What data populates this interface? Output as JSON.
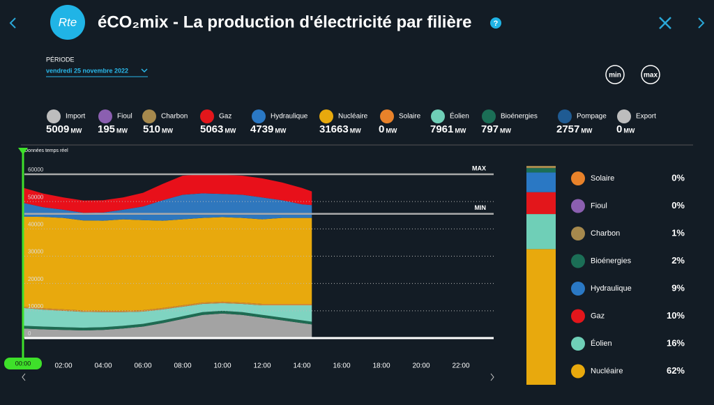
{
  "header": {
    "logo": "Rte",
    "title": "éCO₂mix - La production d'électricité par filière",
    "help": "?",
    "period_label": "PÉRIODE",
    "period": "vendredi 25 novembre 2022",
    "min_button": "min",
    "max_button": "max"
  },
  "unit": "MW",
  "sources": [
    {
      "name": "Import",
      "value": 5009,
      "color": "#bdbdbd"
    },
    {
      "name": "Fioul",
      "value": 195,
      "color": "#8b5fb0"
    },
    {
      "name": "Charbon",
      "value": 510,
      "color": "#a6894d"
    },
    {
      "name": "Gaz",
      "value": 5063,
      "color": "#e3161b"
    },
    {
      "name": "Hydraulique",
      "value": 4739,
      "color": "#2a78c4"
    },
    {
      "name": "Nucléaire",
      "value": 31663,
      "color": "#e8a90d"
    },
    {
      "name": "Solaire",
      "value": 0,
      "color": "#e8822a"
    },
    {
      "name": "Éolien",
      "value": 7961,
      "color": "#6fcfb7"
    },
    {
      "name": "Bioénergies",
      "value": 797,
      "color": "#1b6e56"
    },
    {
      "name": "Pompage",
      "value": 2757,
      "color": "#1f5b93"
    },
    {
      "name": "Export",
      "value": 0,
      "color": "#bdbdbd"
    }
  ],
  "chart_data": {
    "type": "area",
    "subtitle": "Données temps réel",
    "slider_label": "00:00",
    "x": [
      0,
      1,
      2,
      3,
      4,
      5,
      6,
      7,
      8,
      9,
      10,
      11,
      12,
      13,
      14,
      14.5
    ],
    "xlim": [
      0,
      24
    ],
    "xticks": [
      {
        "value": 2,
        "label": "02:00"
      },
      {
        "value": 4,
        "label": "04:00"
      },
      {
        "value": 6,
        "label": "06:00"
      },
      {
        "value": 8,
        "label": "08:00"
      },
      {
        "value": 10,
        "label": "10:00"
      },
      {
        "value": 12,
        "label": "12:00"
      },
      {
        "value": 14,
        "label": "14:00"
      },
      {
        "value": 16,
        "label": "16:00"
      },
      {
        "value": 18,
        "label": "18:00"
      },
      {
        "value": 20,
        "label": "20:00"
      },
      {
        "value": 22,
        "label": "22:00"
      }
    ],
    "ylim": [
      0,
      60000
    ],
    "yticks": [
      0,
      10000,
      20000,
      30000,
      40000,
      50000,
      60000
    ],
    "reference_lines": [
      {
        "label": "MAX",
        "value": 60000
      },
      {
        "label": "MIN",
        "value": 45500
      }
    ],
    "stacked": true,
    "series": [
      {
        "name": "Import",
        "color": "#a3a3a3",
        "values": [
          3500,
          3200,
          3000,
          2800,
          3000,
          3500,
          4200,
          5500,
          7000,
          8500,
          9000,
          8500,
          7500,
          6500,
          5500,
          5000
        ]
      },
      {
        "name": "Bioénergies",
        "color": "#1e6b52",
        "values": [
          1000,
          1000,
          1000,
          1000,
          1000,
          1000,
          1000,
          1000,
          1000,
          1000,
          1000,
          1000,
          1000,
          1000,
          1000,
          1000
        ]
      },
      {
        "name": "Éolien",
        "color": "#7fd4c1",
        "values": [
          6500,
          6200,
          6000,
          5800,
          5500,
          5000,
          4500,
          4000,
          3500,
          3000,
          2800,
          3000,
          3500,
          4500,
          5500,
          6000
        ]
      },
      {
        "name": "Charbon",
        "color": "#d08a3a",
        "values": [
          500,
          500,
          500,
          500,
          500,
          500,
          500,
          500,
          500,
          500,
          500,
          500,
          500,
          500,
          500,
          500
        ]
      },
      {
        "name": "Nucléaire",
        "color": "#e8a90d",
        "values": [
          33000,
          33500,
          33500,
          33000,
          33000,
          33500,
          33000,
          32000,
          31500,
          31000,
          31000,
          31000,
          31000,
          31500,
          31500,
          31500
        ]
      },
      {
        "name": "Hydraulique",
        "color": "#2f77bd",
        "values": [
          5000,
          3500,
          3000,
          2800,
          3000,
          3500,
          5000,
          7500,
          9000,
          9000,
          8500,
          8500,
          8000,
          6500,
          5000,
          4700
        ]
      },
      {
        "name": "Gaz",
        "color": "#e8101a",
        "values": [
          5500,
          5000,
          4500,
          4500,
          4500,
          4500,
          5000,
          6000,
          7000,
          7000,
          7000,
          7000,
          7000,
          6500,
          6000,
          5000
        ]
      }
    ]
  },
  "share": {
    "items": [
      {
        "name": "Solaire",
        "color": "#e8822a",
        "value": 0,
        "value_label": "0%"
      },
      {
        "name": "Fioul",
        "color": "#8b5fb0",
        "value": 0,
        "value_label": "0%"
      },
      {
        "name": "Charbon",
        "color": "#a6894d",
        "value": 1,
        "value_label": "1%"
      },
      {
        "name": "Bioénergies",
        "color": "#1b6e56",
        "value": 2,
        "value_label": "2%"
      },
      {
        "name": "Hydraulique",
        "color": "#2a78c4",
        "value": 9,
        "value_label": "9%"
      },
      {
        "name": "Gaz",
        "color": "#e3161b",
        "value": 10,
        "value_label": "10%"
      },
      {
        "name": "Éolien",
        "color": "#6fcfb7",
        "value": 16,
        "value_label": "16%"
      },
      {
        "name": "Nucléaire",
        "color": "#e8a90d",
        "value": 62,
        "value_label": "62%"
      }
    ]
  }
}
